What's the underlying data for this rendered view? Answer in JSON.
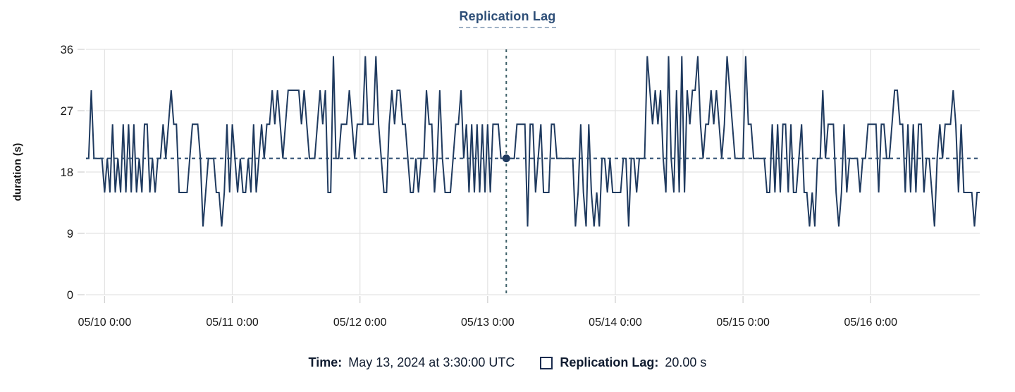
{
  "header": {
    "title": "Replication Lag"
  },
  "tooltip_bar": {
    "time_label": "Time:",
    "time_value": "May 13, 2024 at 3:30:00 UTC",
    "series_swatch_icon": "square-outline-icon",
    "series_label": "Replication Lag:",
    "series_value": "20.00 s"
  },
  "colors": {
    "series": "#1f3a5f",
    "title": "#2d4e77",
    "grid": "#e4e4e4",
    "tick": "#d2d2d2",
    "tick_text": "#171717",
    "crosshair_v": "#3e6069",
    "crosshair_h": "#2b4b6f",
    "legend_text": "#101c30",
    "swatch_border": "#1b2c4f"
  },
  "chart_data": {
    "type": "line",
    "title": "Replication Lag",
    "xlabel": "",
    "ylabel": "duration (s)",
    "ylim": [
      0,
      36
    ],
    "yticks": [
      0,
      9,
      18,
      27,
      36
    ],
    "xticks": [
      "05/10 0:00",
      "05/11 0:00",
      "05/12 0:00",
      "05/13 0:00",
      "05/14 0:00",
      "05/15 0:00",
      "05/16 0:00"
    ],
    "x_tick_start_index": 7,
    "x_points_per_tick": 48,
    "sample_interval_minutes": 30,
    "grid": true,
    "legend_position": "bottom",
    "crosshair": {
      "index": 158,
      "value": 20,
      "time": "May 13, 2024 at 3:30:00 UTC",
      "display_value": "20.00 s"
    },
    "series": [
      {
        "name": "Replication Lag",
        "color": "#1f3a5f",
        "values": [
          20,
          20,
          30,
          20,
          20,
          20,
          20,
          15,
          20,
          15,
          25,
          15,
          20,
          15,
          25,
          15,
          25,
          15,
          25,
          15,
          20,
          15,
          25,
          25,
          15,
          20,
          15,
          20,
          20,
          25,
          20,
          25,
          30,
          25,
          25,
          15,
          15,
          15,
          15,
          20,
          25,
          25,
          25,
          20,
          10,
          15,
          20,
          20,
          20,
          15,
          15,
          10,
          15,
          25,
          15,
          25,
          20,
          15,
          20,
          15,
          15,
          20,
          15,
          25,
          15,
          20,
          25,
          20,
          25,
          25,
          30,
          25,
          30,
          25,
          20,
          25,
          30,
          30,
          30,
          30,
          30,
          25,
          30,
          25,
          20,
          20,
          20,
          25,
          30,
          25,
          30,
          15,
          15,
          35,
          20,
          20,
          25,
          25,
          25,
          30,
          25,
          20,
          25,
          25,
          25,
          35,
          25,
          25,
          25,
          35,
          25,
          20,
          15,
          15,
          25,
          30,
          25,
          30,
          30,
          25,
          25,
          20,
          15,
          15,
          20,
          15,
          20,
          20,
          30,
          25,
          25,
          15,
          20,
          30,
          20,
          15,
          15,
          15,
          20,
          25,
          25,
          30,
          20,
          25,
          15,
          25,
          15,
          25,
          15,
          25,
          15,
          25,
          15,
          25,
          25,
          25,
          20,
          20,
          20,
          20,
          20,
          20,
          25,
          25,
          25,
          25,
          10,
          25,
          25,
          15,
          20,
          25,
          15,
          15,
          15,
          25,
          25,
          20,
          20,
          20,
          20,
          20,
          20,
          20,
          10,
          15,
          25,
          15,
          10,
          25,
          15,
          10,
          15,
          10,
          20,
          20,
          15,
          20,
          15,
          15,
          15,
          15,
          20,
          20,
          10,
          20,
          20,
          15,
          20,
          20,
          20,
          35,
          30,
          25,
          30,
          25,
          30,
          20,
          15,
          35,
          20,
          15,
          30,
          15,
          35,
          15,
          30,
          25,
          30,
          30,
          35,
          25,
          20,
          25,
          25,
          30,
          25,
          30,
          25,
          20,
          25,
          35,
          30,
          25,
          20,
          20,
          20,
          20,
          35,
          25,
          25,
          20,
          20,
          20,
          20,
          20,
          15,
          15,
          25,
          15,
          25,
          15,
          25,
          25,
          15,
          25,
          15,
          15,
          20,
          25,
          15,
          15,
          10,
          15,
          10,
          20,
          20,
          30,
          20,
          25,
          25,
          25,
          15,
          10,
          15,
          25,
          15,
          20,
          20,
          20,
          20,
          15,
          20,
          20,
          25,
          25,
          25,
          25,
          15,
          25,
          25,
          20,
          20,
          25,
          30,
          30,
          25,
          25,
          15,
          25,
          15,
          25,
          15,
          25,
          25,
          15,
          20,
          20,
          15,
          10,
          20,
          25,
          20,
          25,
          25,
          25,
          30,
          25,
          15,
          25,
          15,
          15,
          15,
          15,
          10,
          15,
          15
        ]
      }
    ]
  }
}
